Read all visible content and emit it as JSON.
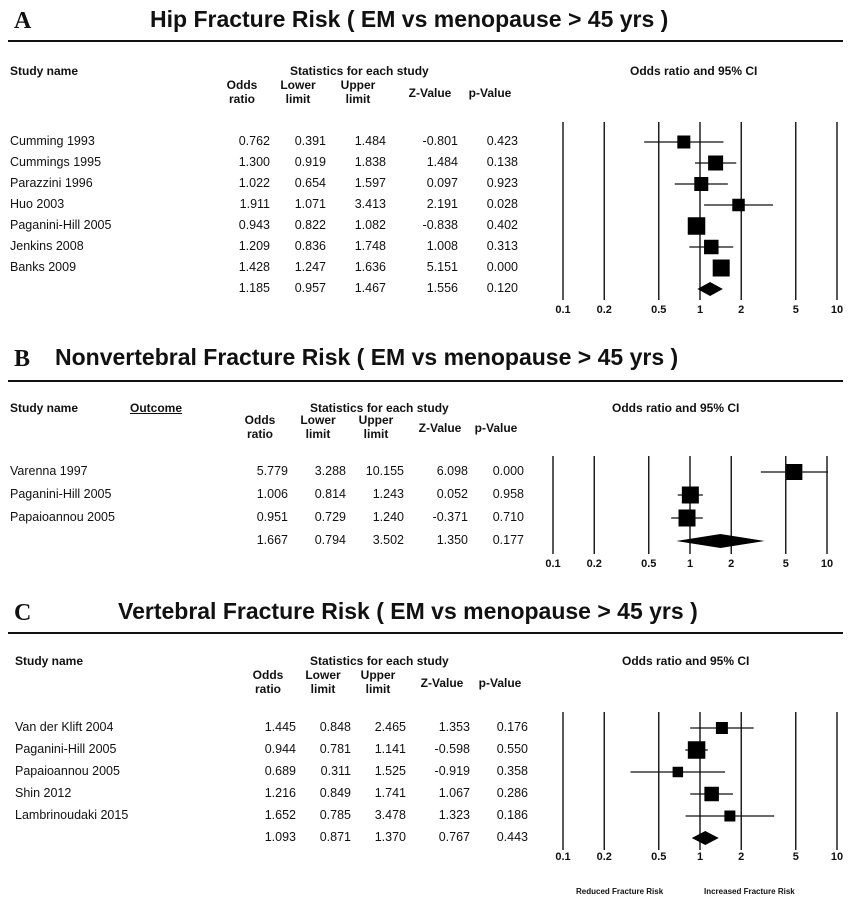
{
  "chart_data": [
    {
      "type": "forest",
      "letter": "A",
      "title": "Hip Fracture Risk ( EM vs menopause > 45 yrs )",
      "header_study": "Study name",
      "header_outcome": "",
      "header_stats": "Statistics for each study",
      "header_plot": "Odds ratio and 95% CI",
      "columns": [
        "Odds\nratio",
        "Lower\nlimit",
        "Upper\nlimit",
        "Z-Value",
        "p-Value"
      ],
      "x_scale": "log",
      "xlim": [
        0.1,
        10
      ],
      "x_ticks": [
        "0.1",
        "0.2",
        "0.5",
        "1",
        "2",
        "5",
        "10"
      ],
      "rows": [
        {
          "study": "Cumming 1993",
          "or": "0.762",
          "lower": "0.391",
          "upper": "1.484",
          "z": "-0.801",
          "p": "0.423",
          "weight": 0.7
        },
        {
          "study": "Cummings 1995",
          "or": "1.300",
          "lower": "0.919",
          "upper": "1.838",
          "z": "1.484",
          "p": "0.138",
          "weight": 0.9
        },
        {
          "study": "Parazzini 1996",
          "or": "1.022",
          "lower": "0.654",
          "upper": "1.597",
          "z": "0.097",
          "p": "0.923",
          "weight": 0.8
        },
        {
          "study": "Huo 2003",
          "or": "1.911",
          "lower": "1.071",
          "upper": "3.413",
          "z": "2.191",
          "p": "0.028",
          "weight": 0.65
        },
        {
          "study": "Paganini-Hill 2005",
          "or": "0.943",
          "lower": "0.822",
          "upper": "1.082",
          "z": "-0.838",
          "p": "0.402",
          "weight": 1.15
        },
        {
          "study": "Jenkins 2008",
          "or": "1.209",
          "lower": "0.836",
          "upper": "1.748",
          "z": "1.008",
          "p": "0.313",
          "weight": 0.85
        },
        {
          "study": "Banks 2009",
          "or": "1.428",
          "lower": "1.247",
          "upper": "1.636",
          "z": "5.151",
          "p": "0.000",
          "weight": 1.1
        }
      ],
      "summary": {
        "study": "",
        "or": "1.185",
        "lower": "0.957",
        "upper": "1.467",
        "z": "1.556",
        "p": "0.120"
      },
      "footer": [
        "",
        ""
      ]
    },
    {
      "type": "forest",
      "letter": "B",
      "title": "Nonvertebral Fracture Risk ( EM vs menopause > 45 yrs )",
      "header_study": "Study name",
      "header_outcome": "Outcome",
      "header_stats": "Statistics for each study",
      "header_plot": "Odds ratio and 95% CI",
      "columns": [
        "Odds\nratio",
        "Lower\nlimit",
        "Upper\nlimit",
        "Z-Value",
        "p-Value"
      ],
      "x_scale": "log",
      "xlim": [
        0.1,
        10
      ],
      "x_ticks": [
        "0.1",
        "0.2",
        "0.5",
        "1",
        "2",
        "5",
        "10"
      ],
      "rows": [
        {
          "study": "Varenna 1997",
          "or": "5.779",
          "lower": "3.288",
          "upper": "10.155",
          "z": "6.098",
          "p": "0.000",
          "weight": 1.0
        },
        {
          "study": "Paganini-Hill 2005",
          "or": "1.006",
          "lower": "0.814",
          "upper": "1.243",
          "z": "0.052",
          "p": "0.958",
          "weight": 1.1
        },
        {
          "study": "Papaioannou 2005",
          "or": "0.951",
          "lower": "0.729",
          "upper": "1.240",
          "z": "-0.371",
          "p": "0.710",
          "weight": 1.1
        }
      ],
      "summary": {
        "study": "",
        "or": "1.667",
        "lower": "0.794",
        "upper": "3.502",
        "z": "1.350",
        "p": "0.177"
      },
      "footer": [
        "",
        ""
      ]
    },
    {
      "type": "forest",
      "letter": "C",
      "title": "Vertebral Fracture Risk ( EM vs menopause > 45 yrs )",
      "header_study": "Study name",
      "header_outcome": "",
      "header_stats": "Statistics for each study",
      "header_plot": "Odds ratio and 95% CI",
      "columns": [
        "Odds\nratio",
        "Lower\nlimit",
        "Upper\nlimit",
        "Z-Value",
        "p-Value"
      ],
      "x_scale": "log",
      "xlim": [
        0.1,
        10
      ],
      "x_ticks": [
        "0.1",
        "0.2",
        "0.5",
        "1",
        "2",
        "5",
        "10"
      ],
      "rows": [
        {
          "study": "Van der Klift 2004",
          "or": "1.445",
          "lower": "0.848",
          "upper": "2.465",
          "z": "1.353",
          "p": "0.176",
          "weight": 0.6
        },
        {
          "study": "Paganini-Hill 2005",
          "or": "0.944",
          "lower": "0.781",
          "upper": "1.141",
          "z": "-0.598",
          "p": "0.550",
          "weight": 1.15
        },
        {
          "study": "Papaioannou 2005",
          "or": "0.689",
          "lower": "0.311",
          "upper": "1.525",
          "z": "-0.919",
          "p": "0.358",
          "weight": 0.45
        },
        {
          "study": "Shin 2012",
          "or": "1.216",
          "lower": "0.849",
          "upper": "1.741",
          "z": "1.067",
          "p": "0.286",
          "weight": 0.85
        },
        {
          "study": "Lambrinoudaki 2015",
          "or": "1.652",
          "lower": "0.785",
          "upper": "3.478",
          "z": "1.323",
          "p": "0.186",
          "weight": 0.5
        }
      ],
      "summary": {
        "study": "",
        "or": "1.093",
        "lower": "0.871",
        "upper": "1.370",
        "z": "0.767",
        "p": "0.443"
      },
      "footer": [
        "Reduced Fracture Risk",
        "Increased Fracture Risk"
      ]
    }
  ]
}
